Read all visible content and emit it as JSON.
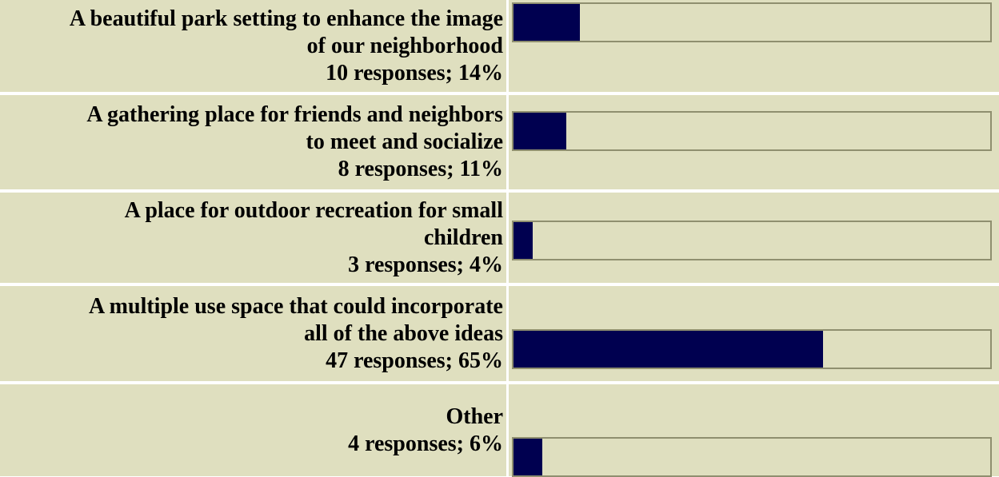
{
  "chart_data": {
    "type": "bar",
    "orientation": "horizontal",
    "categories": [
      "A beautiful park setting to enhance the image of our neighborhood",
      "A gathering place for friends and neighbors to meet and socialize",
      "A place for outdoor recreation for small children",
      "A multiple use space that could incorporate all of the above ideas",
      "Other"
    ],
    "values": [
      14,
      11,
      4,
      65,
      6
    ],
    "responses": [
      10,
      8,
      3,
      47,
      4
    ],
    "xlim": [
      0,
      100
    ],
    "grid": false,
    "legend": "none"
  },
  "colors": {
    "background": "#dfdfbf",
    "bar": "#000050",
    "track_border": "#8f8f6f"
  },
  "rows": [
    {
      "label_lines": [
        "A beautiful park setting to enhance the image",
        "of our neighborhood"
      ],
      "stat": "10 responses; 14%",
      "percent": 14
    },
    {
      "label_lines": [
        "A gathering place for friends and neighbors",
        "to meet and socialize"
      ],
      "stat": "8 responses; 11%",
      "percent": 11
    },
    {
      "label_lines": [
        "A place for outdoor recreation for small",
        "children"
      ],
      "stat": "3 responses; 4%",
      "percent": 4
    },
    {
      "label_lines": [
        "A multiple use space that could incorporate",
        "all of the above ideas"
      ],
      "stat": "47 responses; 65%",
      "percent": 65
    },
    {
      "label_lines": [
        "Other"
      ],
      "stat": "4 responses; 6%",
      "percent": 6
    }
  ]
}
